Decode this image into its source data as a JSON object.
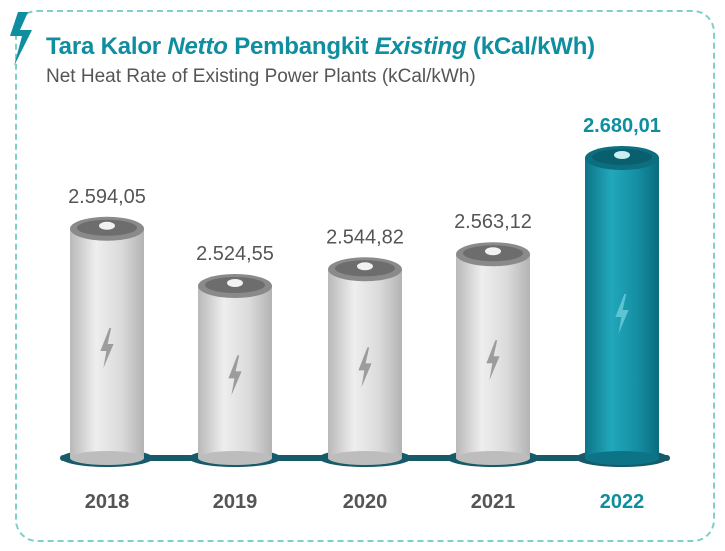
{
  "header": {
    "title_part1": "Tara Kalor ",
    "title_part2": "Netto",
    "title_part3": " Pembangkit ",
    "title_part4": "Existing",
    "title_part5": " (kCal/kWh)",
    "subtitle": "Net Heat Rate of Existing Power Plants (kCal/kWh)",
    "logo_icon": "lightning-bolt-icon"
  },
  "colors": {
    "accent": "#0e8e9e",
    "highlight_bar": "#1493a8",
    "default_bar": "#d3d3d3",
    "base": "#175b6a",
    "frame_border": "#7fd0c9",
    "label_default": "#555555"
  },
  "chart_data": {
    "type": "bar",
    "categories": [
      "2018",
      "2019",
      "2020",
      "2021",
      "2022"
    ],
    "values": [
      2594.05,
      2524.55,
      2544.82,
      2563.12,
      2680.01
    ],
    "value_labels": [
      "2.594,05",
      "2.524,55",
      "2.544,82",
      "2.563,12",
      "2.680,01"
    ],
    "highlight_index": 4,
    "bar_style": "battery-cylinder",
    "bar_icon": "lightning-bolt-icon",
    "title": "Tara Kalor Netto Pembangkit Existing (kCal/kWh)",
    "subtitle": "Net Heat Rate of Existing Power Plants (kCal/kWh)",
    "xlabel": "",
    "ylabel": "",
    "grid": false,
    "legend": "none"
  }
}
